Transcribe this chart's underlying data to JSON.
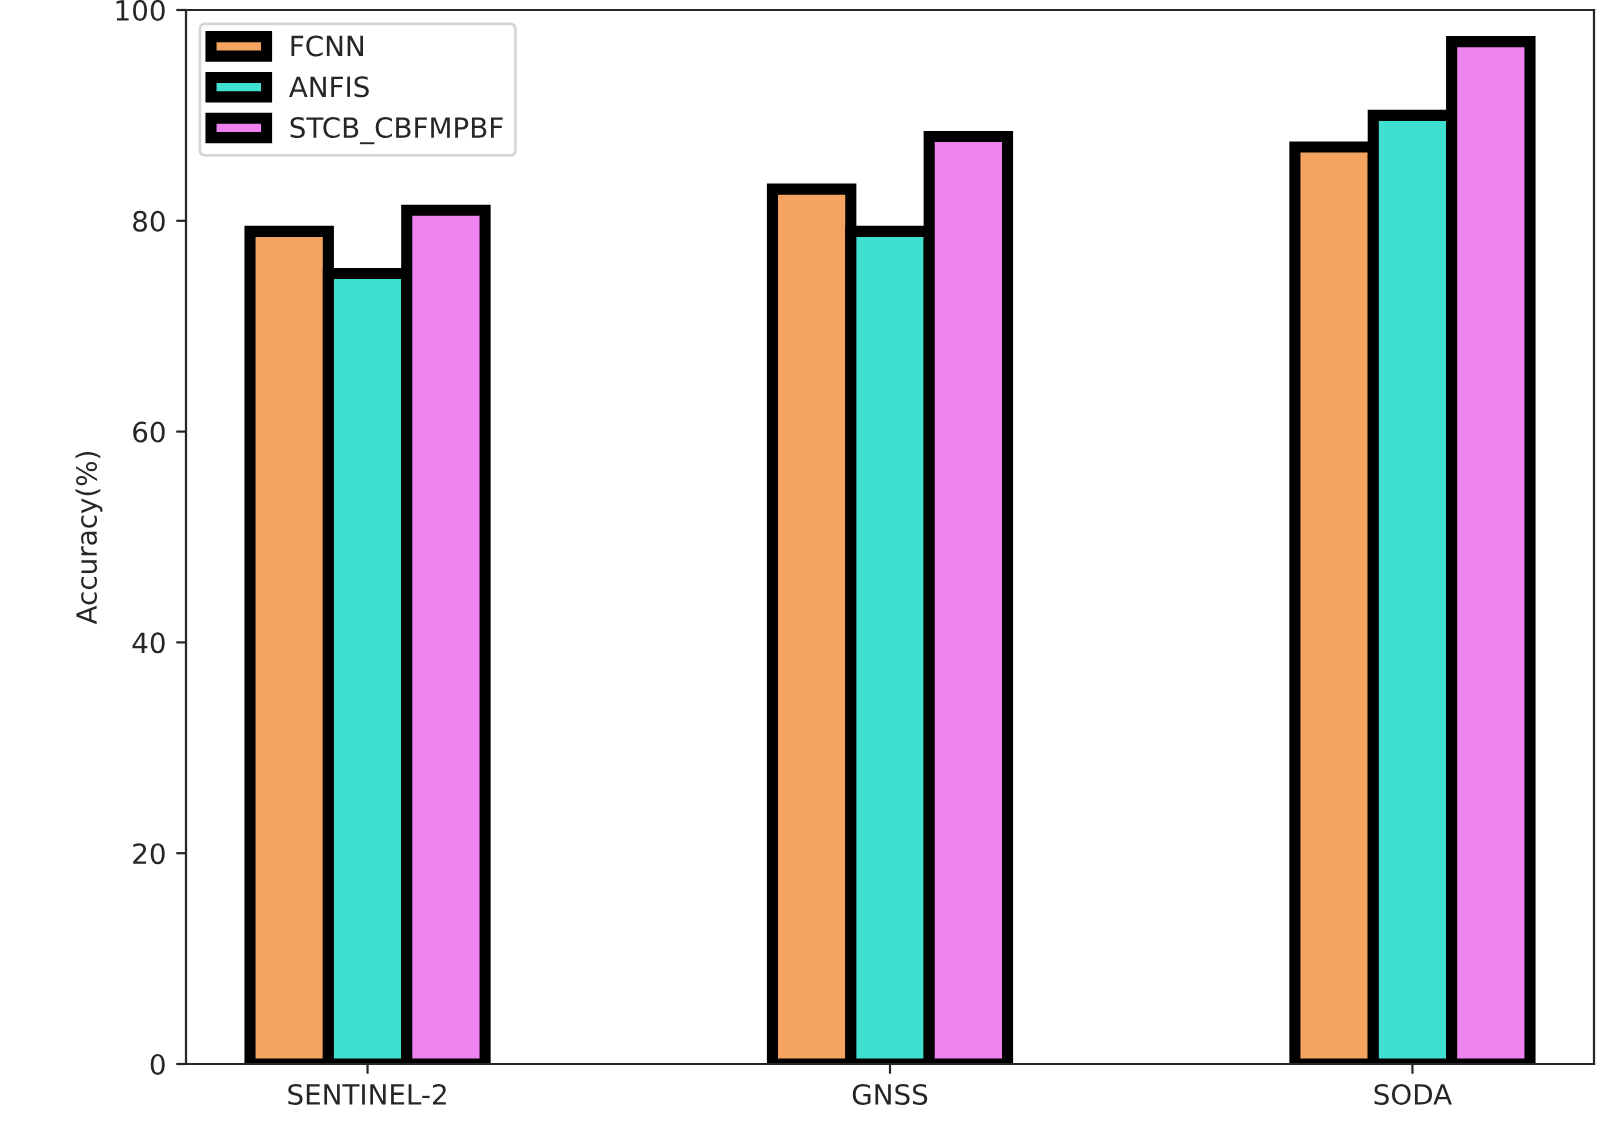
{
  "chart_data": {
    "type": "bar",
    "ylabel": "Accuracy(%)",
    "categories": [
      "SENTINEL-2",
      "GNSS",
      "SODA"
    ],
    "series": [
      {
        "name": "FCNN",
        "color": "#f4a460",
        "values": [
          79,
          83,
          87
        ]
      },
      {
        "name": "ANFIS",
        "color": "#40e0d0",
        "values": [
          75,
          79,
          90
        ]
      },
      {
        "name": "STCB_CBFMPBF",
        "color": "#ee82ee",
        "values": [
          81,
          88,
          97
        ]
      }
    ],
    "ylim": [
      0,
      100
    ],
    "yticks": [
      0,
      20,
      40,
      60,
      80,
      100
    ],
    "grid": false,
    "legend": "top left"
  }
}
